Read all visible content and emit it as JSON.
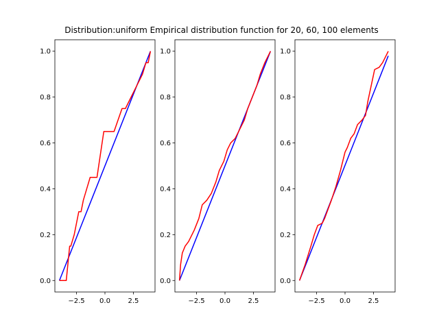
{
  "colors": {
    "cdf_line": "#0000ff",
    "ecdf_line": "#ff0000",
    "axes": "#000000",
    "background": "#ffffff"
  },
  "chart_data": [
    {
      "type": "line",
      "title": "Distribution:uniform Empirical distribution function for 20, 60, 100 elements",
      "xlabel": "",
      "ylabel": "",
      "xlim": [
        -4.4,
        4.4
      ],
      "ylim": [
        -0.05,
        1.05
      ],
      "xticks": [
        -2.5,
        0.0,
        2.5
      ],
      "xtick_labels": [
        "−2.5",
        "0.0",
        "2.5"
      ],
      "yticks": [
        0.0,
        0.2,
        0.4,
        0.6,
        0.8,
        1.0
      ],
      "ytick_labels": [
        "0.0",
        "0.2",
        "0.4",
        "0.6",
        "0.8",
        "1.0"
      ],
      "series": [
        {
          "kind": "theoretical",
          "color": "#0000ff",
          "x": [
            -4.0,
            4.0
          ],
          "y": [
            0.0,
            1.0
          ]
        },
        {
          "kind": "empirical",
          "color": "#ff0000",
          "x": [
            -4.0,
            -3.4,
            -3.2,
            -3.1,
            -3.0,
            -2.7,
            -2.5,
            -2.3,
            -2.1,
            -1.9,
            -1.6,
            -1.3,
            -0.7,
            -0.4,
            -0.1,
            0.1,
            0.35,
            0.8,
            1.5,
            1.8,
            2.3,
            2.8,
            3.3,
            3.6,
            3.8,
            4.0
          ],
          "y": [
            0.0,
            0.0,
            0.1,
            0.15,
            0.15,
            0.2,
            0.25,
            0.3,
            0.3,
            0.35,
            0.4,
            0.45,
            0.45,
            0.55,
            0.65,
            0.65,
            0.65,
            0.65,
            0.75,
            0.75,
            0.8,
            0.85,
            0.9,
            0.95,
            0.95,
            1.0
          ]
        }
      ]
    },
    {
      "type": "line",
      "title": "",
      "xlabel": "",
      "ylabel": "",
      "xlim": [
        -4.4,
        4.4
      ],
      "ylim": [
        -0.05,
        1.05
      ],
      "xticks": [
        -2.5,
        0.0,
        2.5
      ],
      "xtick_labels": [
        "−2.5",
        "0.0",
        "2.5"
      ],
      "yticks": [
        0.0,
        0.2,
        0.4,
        0.6,
        0.8,
        1.0
      ],
      "ytick_labels": [
        "0.0",
        "0.2",
        "0.4",
        "0.6",
        "0.8",
        "1.0"
      ],
      "series": [
        {
          "kind": "theoretical",
          "color": "#0000ff",
          "x": [
            -4.0,
            4.0
          ],
          "y": [
            0.0,
            1.0
          ]
        },
        {
          "kind": "empirical",
          "color": "#ff0000",
          "x": [
            -4.0,
            -3.9,
            -3.75,
            -3.5,
            -3.2,
            -2.7,
            -2.3,
            -2.0,
            -1.6,
            -1.2,
            -0.8,
            -0.5,
            -0.1,
            0.2,
            0.5,
            0.9,
            1.3,
            1.7,
            2.0,
            2.4,
            2.8,
            3.1,
            3.5,
            3.8,
            4.0
          ],
          "y": [
            0.0,
            0.07,
            0.12,
            0.15,
            0.17,
            0.22,
            0.27,
            0.33,
            0.35,
            0.38,
            0.43,
            0.48,
            0.52,
            0.57,
            0.6,
            0.62,
            0.66,
            0.7,
            0.75,
            0.8,
            0.85,
            0.9,
            0.95,
            0.98,
            1.0
          ]
        }
      ]
    },
    {
      "type": "line",
      "title": "",
      "xlabel": "",
      "ylabel": "",
      "xlim": [
        -4.4,
        4.4
      ],
      "ylim": [
        -0.05,
        1.05
      ],
      "xticks": [
        -2.5,
        0.0,
        2.5
      ],
      "xtick_labels": [
        "−2.5",
        "0.0",
        "2.5"
      ],
      "yticks": [
        0.0,
        0.2,
        0.4,
        0.6,
        0.8,
        1.0
      ],
      "ytick_labels": [
        "0.0",
        "0.2",
        "0.4",
        "0.6",
        "0.8",
        "1.0"
      ],
      "series": [
        {
          "kind": "theoretical",
          "color": "#0000ff",
          "x": [
            -4.0,
            3.8
          ],
          "y": [
            0.0,
            0.98
          ]
        },
        {
          "kind": "empirical",
          "color": "#ff0000",
          "x": [
            -4.0,
            -3.5,
            -3.0,
            -2.7,
            -2.4,
            -2.0,
            -1.8,
            -1.5,
            -1.2,
            -0.8,
            -0.4,
            0.0,
            0.2,
            0.5,
            0.8,
            1.1,
            1.5,
            1.8,
            2.0,
            2.3,
            2.6,
            3.0,
            3.3,
            3.6,
            3.8
          ],
          "y": [
            0.0,
            0.07,
            0.15,
            0.2,
            0.24,
            0.25,
            0.27,
            0.31,
            0.35,
            0.41,
            0.48,
            0.56,
            0.58,
            0.62,
            0.64,
            0.68,
            0.7,
            0.72,
            0.78,
            0.85,
            0.92,
            0.93,
            0.95,
            0.98,
            1.0
          ]
        }
      ]
    }
  ]
}
